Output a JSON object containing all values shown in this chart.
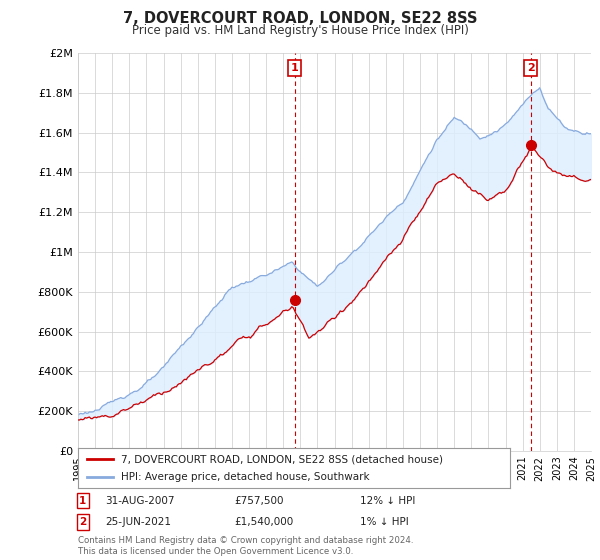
{
  "title": "7, DOVERCOURT ROAD, LONDON, SE22 8SS",
  "subtitle": "Price paid vs. HM Land Registry's House Price Index (HPI)",
  "red_label": "7, DOVERCOURT ROAD, LONDON, SE22 8SS (detached house)",
  "blue_label": "HPI: Average price, detached house, Southwark",
  "annotation1_date": "31-AUG-2007",
  "annotation1_price": "£757,500",
  "annotation1_hpi": "12% ↓ HPI",
  "annotation2_date": "25-JUN-2021",
  "annotation2_price": "£1,540,000",
  "annotation2_hpi": "1% ↓ HPI",
  "footer": "Contains HM Land Registry data © Crown copyright and database right 2024.\nThis data is licensed under the Open Government Licence v3.0.",
  "red_color": "#cc0000",
  "blue_color": "#88aadd",
  "fill_color": "#ddeeff",
  "annotation_color": "#cc0000",
  "background_color": "#ffffff",
  "grid_color": "#cccccc",
  "ylim": [
    0,
    2000000
  ],
  "yticks": [
    0,
    200000,
    400000,
    600000,
    800000,
    1000000,
    1200000,
    1400000,
    1600000,
    1800000,
    2000000
  ],
  "ytick_labels": [
    "£0",
    "£200K",
    "£400K",
    "£600K",
    "£800K",
    "£1M",
    "£1.2M",
    "£1.4M",
    "£1.6M",
    "£1.8M",
    "£2M"
  ],
  "sale1_x": 2007.67,
  "sale1_y": 757500,
  "sale2_x": 2021.48,
  "sale2_y": 1540000,
  "xmin": 1995,
  "xmax": 2025
}
